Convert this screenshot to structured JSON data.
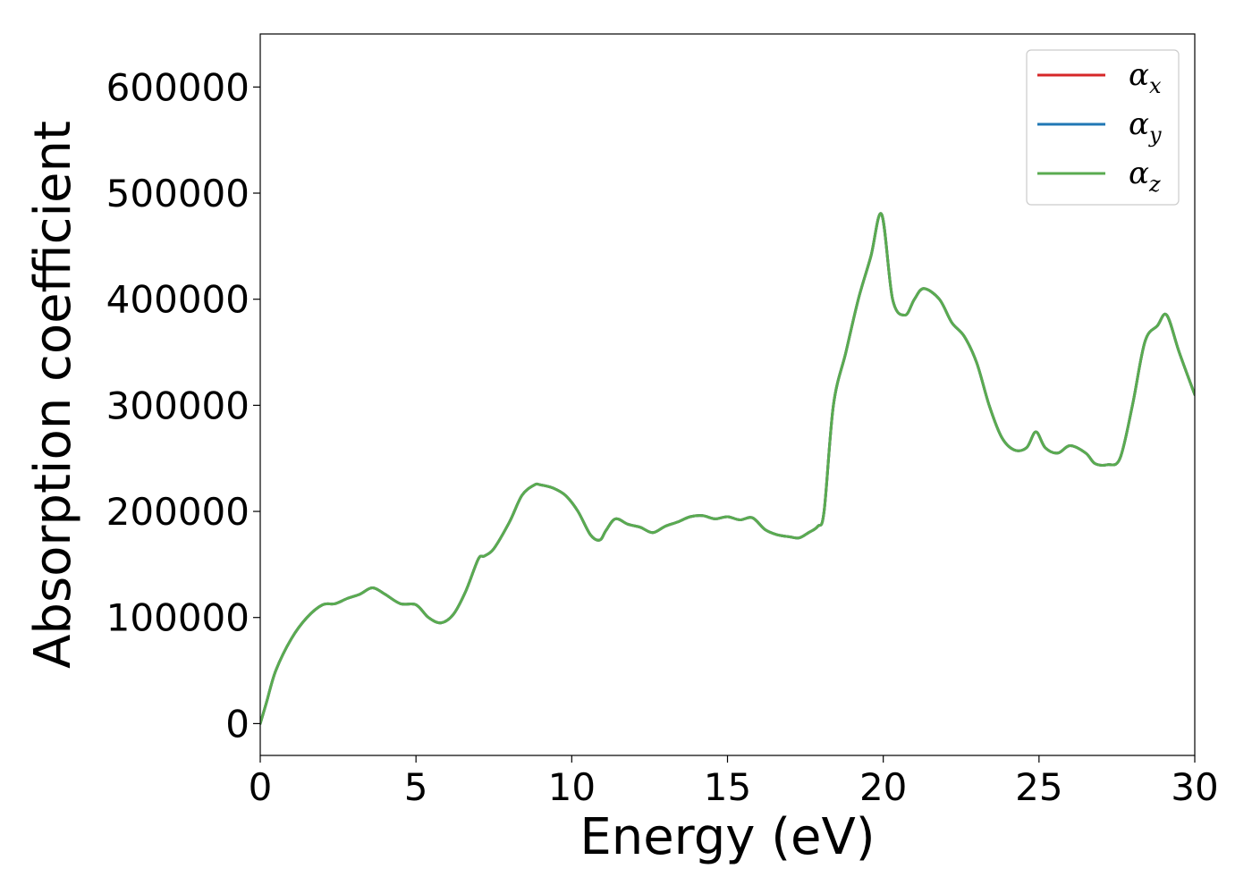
{
  "chart_data": {
    "type": "line",
    "title": "",
    "xlabel": "Energy (eV)",
    "ylabel": "Absorption coefficient",
    "xlim": [
      0,
      30
    ],
    "ylim": [
      -30000,
      650000
    ],
    "xticks": [
      0,
      5,
      10,
      15,
      20,
      25,
      30
    ],
    "xtick_labels": [
      "0",
      "5",
      "10",
      "15",
      "20",
      "25",
      "30"
    ],
    "yticks": [
      0,
      100000,
      200000,
      300000,
      400000,
      500000,
      600000
    ],
    "ytick_labels": [
      "0",
      "100000",
      "200000",
      "300000",
      "400000",
      "500000",
      "600000"
    ],
    "grid": false,
    "legend_position": "top-right",
    "x": [
      0,
      0.2,
      0.5,
      1.0,
      1.5,
      2.0,
      2.4,
      2.8,
      3.2,
      3.6,
      4.0,
      4.5,
      5.0,
      5.4,
      5.8,
      6.2,
      6.6,
      7.0,
      7.2,
      7.5,
      8.0,
      8.4,
      8.8,
      9.0,
      9.4,
      9.8,
      10.2,
      10.6,
      10.9,
      11.1,
      11.4,
      11.8,
      12.2,
      12.6,
      13.0,
      13.4,
      13.8,
      14.2,
      14.6,
      15.0,
      15.4,
      15.8,
      16.2,
      16.6,
      17.0,
      17.3,
      17.6,
      17.9,
      18.1,
      18.4,
      18.8,
      19.2,
      19.6,
      19.95,
      20.3,
      20.7,
      21.0,
      21.3,
      21.8,
      22.2,
      22.6,
      23.0,
      23.4,
      23.8,
      24.2,
      24.6,
      24.9,
      25.2,
      25.6,
      26.0,
      26.5,
      26.8,
      27.2,
      27.6,
      28.0,
      28.4,
      28.8,
      29.1,
      29.5,
      30.0
    ],
    "series": [
      {
        "name": "α",
        "subscript": "x",
        "color": "#d62728",
        "values": [
          0,
          20000,
          50000,
          80000,
          100000,
          112000,
          113000,
          118000,
          122000,
          128000,
          122000,
          113000,
          112000,
          100000,
          95000,
          103000,
          125000,
          155000,
          158000,
          165000,
          190000,
          215000,
          225000,
          225000,
          222000,
          215000,
          200000,
          178000,
          173000,
          182000,
          193000,
          188000,
          185000,
          180000,
          186000,
          190000,
          195000,
          196000,
          193000,
          195000,
          192000,
          194000,
          183000,
          178000,
          176000,
          175000,
          180000,
          186000,
          200000,
          300000,
          350000,
          400000,
          440000,
          480000,
          400000,
          385000,
          400000,
          410000,
          400000,
          378000,
          365000,
          340000,
          300000,
          270000,
          258000,
          260000,
          275000,
          260000,
          255000,
          262000,
          255000,
          245000,
          244000,
          250000,
          300000,
          360000,
          375000,
          385000,
          350000,
          310000
        ]
      },
      {
        "name": "α",
        "subscript": "y",
        "color": "#1f77b4",
        "values": [
          0,
          20000,
          50000,
          80000,
          100000,
          112000,
          113000,
          118000,
          122000,
          128000,
          122000,
          113000,
          112000,
          100000,
          95000,
          103000,
          125000,
          155000,
          158000,
          165000,
          190000,
          215000,
          225000,
          225000,
          222000,
          215000,
          200000,
          178000,
          173000,
          182000,
          193000,
          188000,
          185000,
          180000,
          186000,
          190000,
          195000,
          196000,
          193000,
          195000,
          192000,
          194000,
          183000,
          178000,
          176000,
          175000,
          180000,
          186000,
          200000,
          300000,
          350000,
          400000,
          440000,
          480000,
          400000,
          385000,
          400000,
          410000,
          400000,
          378000,
          365000,
          340000,
          300000,
          270000,
          258000,
          260000,
          275000,
          260000,
          255000,
          262000,
          255000,
          245000,
          244000,
          250000,
          300000,
          360000,
          375000,
          385000,
          350000,
          310000
        ]
      },
      {
        "name": "α",
        "subscript": "z",
        "color": "#5aab50",
        "values": [
          0,
          20000,
          50000,
          80000,
          100000,
          112000,
          113000,
          118000,
          122000,
          128000,
          122000,
          113000,
          112000,
          100000,
          95000,
          103000,
          125000,
          155000,
          158000,
          165000,
          190000,
          215000,
          225000,
          225000,
          222000,
          215000,
          200000,
          178000,
          173000,
          182000,
          193000,
          188000,
          185000,
          180000,
          186000,
          190000,
          195000,
          196000,
          193000,
          195000,
          192000,
          194000,
          183000,
          178000,
          176000,
          175000,
          180000,
          186000,
          200000,
          300000,
          350000,
          400000,
          440000,
          480000,
          400000,
          385000,
          400000,
          410000,
          400000,
          378000,
          365000,
          340000,
          300000,
          270000,
          258000,
          260000,
          275000,
          260000,
          255000,
          262000,
          255000,
          245000,
          244000,
          250000,
          300000,
          360000,
          375000,
          385000,
          350000,
          310000
        ]
      }
    ]
  }
}
